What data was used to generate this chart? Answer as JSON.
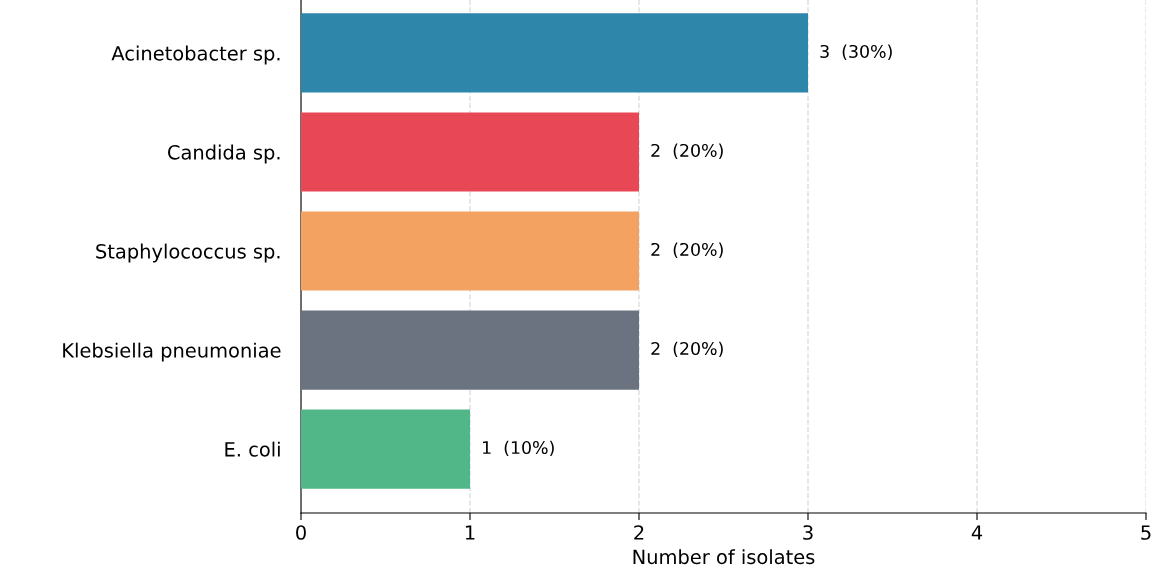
{
  "chart_data": {
    "type": "bar",
    "orientation": "horizontal",
    "xlabel": "Number of isolates",
    "categories": [
      "Acinetobacter sp.",
      "Candida sp.",
      "Staphylococcus sp.",
      "Klebsiella pneumoniae",
      "E. coli"
    ],
    "values": [
      3,
      2,
      2,
      2,
      1
    ],
    "colors": [
      "#2e86ab",
      "#e84855",
      "#f4a261",
      "#6b7280",
      "#52b788"
    ],
    "value_labels": [
      "3  (30%)",
      "2  (20%)",
      "2  (20%)",
      "2  (20%)",
      "1  (10%)"
    ],
    "xlim": [
      0,
      5
    ],
    "xticks": [
      0,
      1,
      2,
      3,
      4,
      5
    ],
    "grid": "x",
    "legend": false
  }
}
